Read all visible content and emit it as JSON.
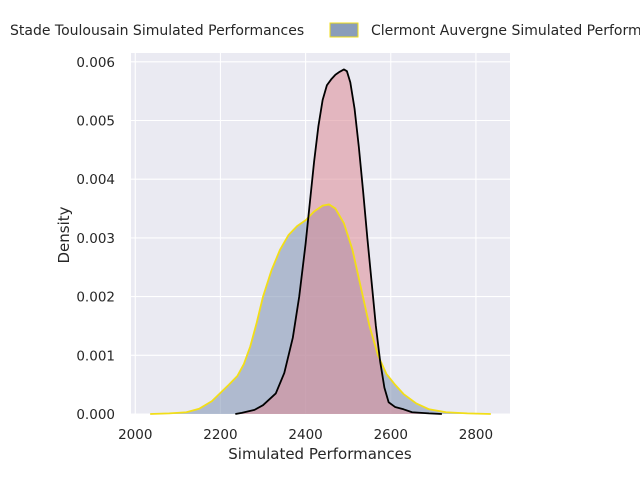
{
  "chart_data": {
    "type": "area",
    "xlabel": "Simulated Performances",
    "ylabel": "Density",
    "xlim": [
      1990,
      2880
    ],
    "ylim": [
      0,
      0.00615
    ],
    "xticks": [
      2000,
      2200,
      2400,
      2600,
      2800
    ],
    "xtick_labels": [
      "2000",
      "2200",
      "2400",
      "2600",
      "2800"
    ],
    "yticks": [
      0,
      0.001,
      0.002,
      0.003,
      0.004,
      0.005,
      0.006
    ],
    "ytick_labels": [
      "0.000",
      "0.001",
      "0.002",
      "0.003",
      "0.004",
      "0.005",
      "0.006"
    ],
    "grid": true,
    "legend_position": "top (outside, above plot)",
    "series": [
      {
        "name": "Stade Toulousain Simulated Performances",
        "fill_color": "#dd8a96",
        "edge_color": "#000000",
        "legend_marker": false,
        "points": [
          [
            2235,
            0
          ],
          [
            2250,
            2e-05
          ],
          [
            2280,
            7e-05
          ],
          [
            2300,
            0.00015
          ],
          [
            2330,
            0.00035
          ],
          [
            2350,
            0.0007
          ],
          [
            2370,
            0.0013
          ],
          [
            2385,
            0.002
          ],
          [
            2400,
            0.0029
          ],
          [
            2410,
            0.0036
          ],
          [
            2420,
            0.0043
          ],
          [
            2430,
            0.0049
          ],
          [
            2440,
            0.00535
          ],
          [
            2450,
            0.0056
          ],
          [
            2460,
            0.0057
          ],
          [
            2470,
            0.00578
          ],
          [
            2480,
            0.00583
          ],
          [
            2490,
            0.00587
          ],
          [
            2497,
            0.00584
          ],
          [
            2505,
            0.00565
          ],
          [
            2515,
            0.0052
          ],
          [
            2525,
            0.00455
          ],
          [
            2535,
            0.0038
          ],
          [
            2545,
            0.003
          ],
          [
            2555,
            0.00225
          ],
          [
            2565,
            0.0015
          ],
          [
            2575,
            0.0009
          ],
          [
            2585,
            0.00045
          ],
          [
            2595,
            0.0002
          ],
          [
            2610,
            0.00012
          ],
          [
            2630,
            8e-05
          ],
          [
            2650,
            3e-05
          ],
          [
            2690,
            1e-05
          ],
          [
            2720,
            0
          ]
        ]
      },
      {
        "name": "Clermont Auvergne Simulated Performances",
        "fill_color": "#8a9dba",
        "edge_color": "#f2de17",
        "legend_marker": true,
        "points": [
          [
            2035,
            0
          ],
          [
            2080,
            1e-05
          ],
          [
            2120,
            3e-05
          ],
          [
            2150,
            9e-05
          ],
          [
            2180,
            0.00022
          ],
          [
            2200,
            0.00036
          ],
          [
            2220,
            0.0005
          ],
          [
            2240,
            0.00065
          ],
          [
            2255,
            0.00085
          ],
          [
            2270,
            0.00115
          ],
          [
            2285,
            0.00155
          ],
          [
            2300,
            0.002
          ],
          [
            2320,
            0.00245
          ],
          [
            2340,
            0.0028
          ],
          [
            2360,
            0.00305
          ],
          [
            2380,
            0.0032
          ],
          [
            2400,
            0.0033
          ],
          [
            2420,
            0.00345
          ],
          [
            2440,
            0.00355
          ],
          [
            2455,
            0.00357
          ],
          [
            2470,
            0.0035
          ],
          [
            2490,
            0.00325
          ],
          [
            2510,
            0.0028
          ],
          [
            2530,
            0.00215
          ],
          [
            2550,
            0.0015
          ],
          [
            2570,
            0.001
          ],
          [
            2590,
            0.00068
          ],
          [
            2610,
            0.0005
          ],
          [
            2630,
            0.00034
          ],
          [
            2660,
            0.00018
          ],
          [
            2690,
            8e-05
          ],
          [
            2730,
            3e-05
          ],
          [
            2780,
            1e-05
          ],
          [
            2835,
            0
          ]
        ]
      }
    ]
  }
}
